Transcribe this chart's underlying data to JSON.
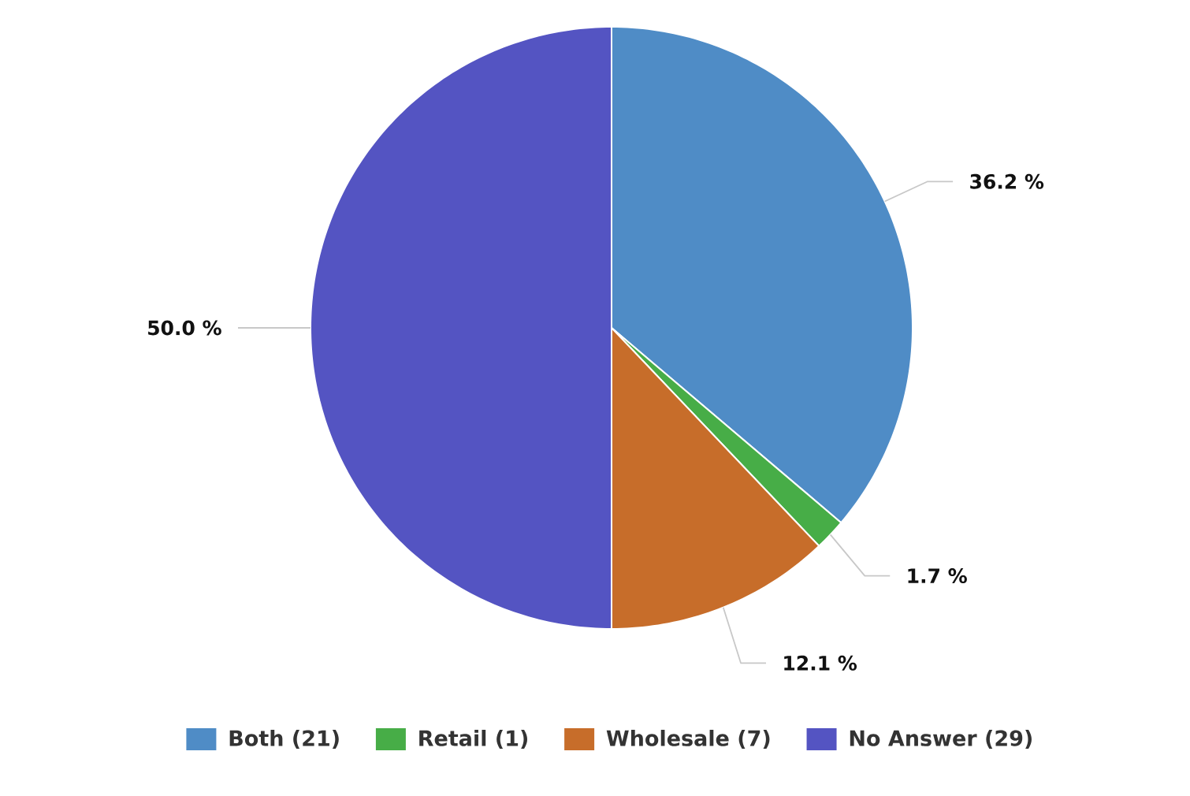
{
  "chart_data": {
    "type": "pie",
    "categories": [
      "Both (21)",
      "Retail (1)",
      "Wholesale (7)",
      "No Answer (29)"
    ],
    "values": [
      36.2,
      1.7,
      12.1,
      50.0
    ],
    "value_labels": [
      "36.2 %",
      "1.7 %",
      "12.1 %",
      "50.0 %"
    ],
    "colors": [
      "#4f8cc6",
      "#47ad47",
      "#c76d2a",
      "#5454c2"
    ],
    "legend": "bottom"
  }
}
